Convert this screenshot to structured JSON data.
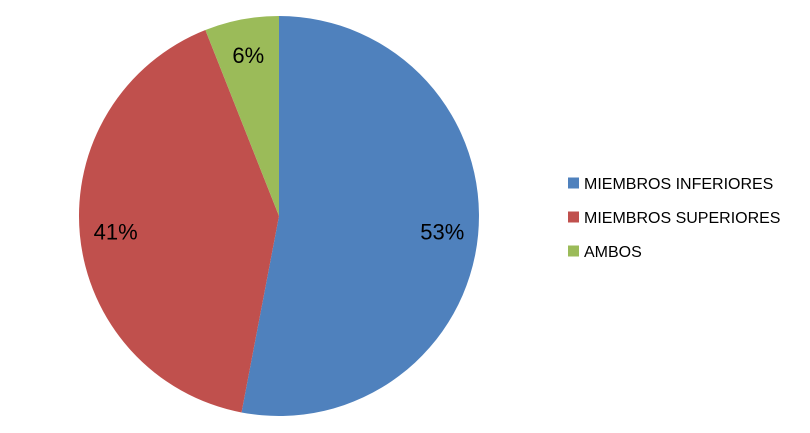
{
  "chart_data": {
    "type": "pie",
    "title": "",
    "legend_position": "right",
    "slices": [
      {
        "name": "MIEMBROS INFERIORES",
        "value": 53,
        "label": "53%",
        "color": "#4F81BD"
      },
      {
        "name": "MIEMBROS SUPERIORES",
        "value": 41,
        "label": "41%",
        "color": "#C0504D"
      },
      {
        "name": "AMBOS",
        "value": 6,
        "label": "6%",
        "color": "#9BBB59"
      }
    ]
  }
}
